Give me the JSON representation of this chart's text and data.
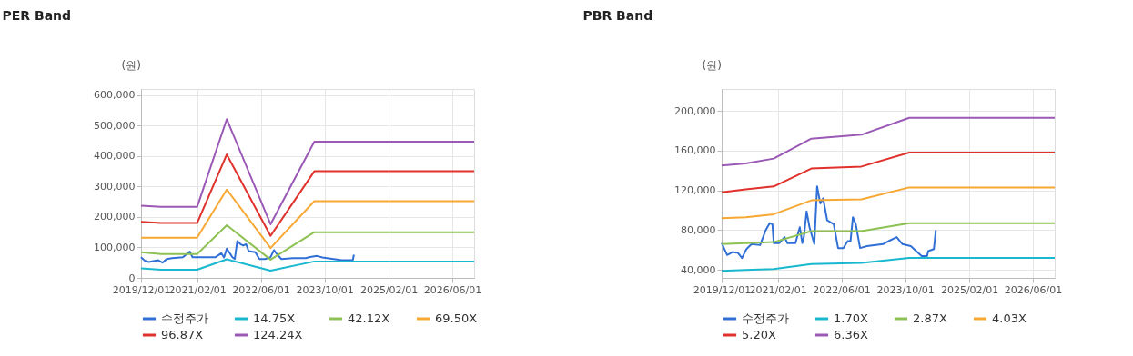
{
  "chart_data": [
    {
      "type": "line",
      "title": "PER Band",
      "ylabel": "(원)",
      "grid": true,
      "legend": "bottom",
      "marker": "none",
      "line_style": "solid",
      "xlim": [
        "2019-12-01",
        "2026-11-15"
      ],
      "xticks": [
        {
          "value": "2019-12-01",
          "label": "2019/12/01"
        },
        {
          "value": "2021-02-01",
          "label": "2021/02/01"
        },
        {
          "value": "2022-06-01",
          "label": "2022/06/01"
        },
        {
          "value": "2023-10-01",
          "label": "2023/10/01"
        },
        {
          "value": "2025-02-01",
          "label": "2025/02/01"
        },
        {
          "value": "2026-06-01",
          "label": "2026/06/01"
        }
      ],
      "ylim": [
        0,
        620000
      ],
      "yticks": [
        0,
        {
          "value": 100000,
          "label": "100,000"
        },
        {
          "value": 200000,
          "label": "200,000"
        },
        {
          "value": 300000,
          "label": "300,000"
        },
        {
          "value": 400000,
          "label": "400,000"
        },
        {
          "value": 500000,
          "label": "500,000"
        },
        {
          "value": 600000,
          "label": "600,000"
        }
      ],
      "series": [
        {
          "name": "수정주가",
          "color": "#2f6fd6",
          "x": [
            "2019-12-01",
            "2019-12-28",
            "2020-01-28",
            "2020-04-10",
            "2020-05-13",
            "2020-06-13",
            "2020-07-25",
            "2020-10-15",
            "2020-12-07",
            "2020-12-28",
            "2021-06-22",
            "2021-08-04",
            "2021-08-25",
            "2021-09-15",
            "2021-10-28",
            "2021-11-15",
            "2021-12-04",
            "2021-12-28",
            "2022-01-19",
            "2022-02-09",
            "2022-03-01",
            "2022-04-21",
            "2022-05-22",
            "2022-07-04",
            "2022-08-15",
            "2022-09-10",
            "2022-10-06",
            "2022-11-06",
            "2023-02-01",
            "2023-05-12",
            "2023-06-03",
            "2023-08-03",
            "2023-09-15",
            "2023-12-09",
            "2024-02-09",
            "2024-05-03",
            "2024-05-12"
          ],
          "values": [
            68000,
            57000,
            52000,
            58000,
            50000,
            62000,
            65000,
            68000,
            86000,
            68000,
            68000,
            81000,
            67000,
            96000,
            68000,
            62000,
            121000,
            111000,
            106000,
            111000,
            88000,
            84000,
            62000,
            62000,
            68000,
            91000,
            76000,
            62000,
            65000,
            65000,
            68000,
            72000,
            67000,
            62000,
            58000,
            58000,
            76000
          ]
        },
        {
          "name": "14.75X",
          "color": "#19b8cf",
          "x": [
            "2019-12-01",
            "2020-05-01",
            "2021-02-01",
            "2021-09-15",
            "2022-08-15",
            "2023-07-15",
            "2026-11-15"
          ],
          "values": [
            31000,
            27000,
            27000,
            61000,
            24000,
            54000,
            54000
          ]
        },
        {
          "name": "42.12X",
          "color": "#8dc153",
          "x": [
            "2019-12-01",
            "2020-05-01",
            "2021-02-01",
            "2021-09-15",
            "2022-08-15",
            "2023-07-15",
            "2026-11-15"
          ],
          "values": [
            84000,
            78000,
            78000,
            173000,
            60000,
            150000,
            150000
          ]
        },
        {
          "name": "69.50X",
          "color": "#f7a833",
          "x": [
            "2019-12-01",
            "2020-05-01",
            "2021-02-01",
            "2021-09-15",
            "2022-08-15",
            "2023-07-15",
            "2026-11-15"
          ],
          "values": [
            132000,
            132000,
            132000,
            290000,
            98000,
            252000,
            252000
          ]
        },
        {
          "name": "96.87X",
          "color": "#e0312c",
          "x": [
            "2019-12-01",
            "2020-05-01",
            "2021-02-01",
            "2021-09-15",
            "2022-08-15",
            "2023-07-15",
            "2026-11-15"
          ],
          "values": [
            184000,
            180000,
            180000,
            405000,
            138000,
            350000,
            350000
          ]
        },
        {
          "name": "124.24X",
          "color": "#9b59b6",
          "x": [
            "2019-12-01",
            "2020-05-01",
            "2021-02-01",
            "2021-09-15",
            "2022-08-15",
            "2023-07-15",
            "2026-11-15"
          ],
          "values": [
            237000,
            233000,
            233000,
            521000,
            176000,
            447000,
            447000
          ]
        }
      ]
    },
    {
      "type": "line",
      "title": "PBR Band",
      "ylabel": "(원)",
      "grid": true,
      "legend": "bottom",
      "marker": "none",
      "line_style": "solid",
      "xlim": [
        "2019-12-01",
        "2026-11-15"
      ],
      "xticks": [
        {
          "value": "2019-12-01",
          "label": "2019/12/01"
        },
        {
          "value": "2021-02-01",
          "label": "2021/02/01"
        },
        {
          "value": "2022-06-01",
          "label": "2022/06/01"
        },
        {
          "value": "2023-10-01",
          "label": "2023/10/01"
        },
        {
          "value": "2025-02-01",
          "label": "2025/02/01"
        },
        {
          "value": "2026-06-01",
          "label": "2026/06/01"
        }
      ],
      "ylim": [
        32000,
        222000
      ],
      "yticks": [
        {
          "value": 40000,
          "label": "40,000"
        },
        {
          "value": 80000,
          "label": "80,000"
        },
        {
          "value": 120000,
          "label": "120,000"
        },
        {
          "value": 160000,
          "label": "160,000"
        },
        {
          "value": 200000,
          "label": "200,000"
        }
      ],
      "series": [
        {
          "name": "수정주가",
          "color": "#2f6fd6",
          "x": [
            "2019-12-01",
            "2020-01-12",
            "2020-02-22",
            "2020-04-04",
            "2020-05-04",
            "2020-06-07",
            "2020-07-16",
            "2020-09-19",
            "2020-11-01",
            "2020-12-01",
            "2020-12-22",
            "2021-01-01",
            "2021-02-13",
            "2021-03-25",
            "2021-04-15",
            "2021-06-16",
            "2021-07-19",
            "2021-08-07",
            "2021-08-19",
            "2021-09-09",
            "2021-10-01",
            "2021-11-07",
            "2021-11-28",
            "2021-12-22",
            "2022-01-13",
            "2022-02-13",
            "2022-04-04",
            "2022-05-07",
            "2022-06-16",
            "2022-07-19",
            "2022-08-10",
            "2022-08-28",
            "2022-09-19",
            "2022-10-22",
            "2022-12-13",
            "2023-04-16",
            "2023-05-28",
            "2023-07-28",
            "2023-09-10",
            "2023-11-13",
            "2024-02-04",
            "2024-03-16",
            "2024-03-25",
            "2024-05-07",
            "2024-05-22"
          ],
          "values": [
            67000,
            55000,
            58000,
            57000,
            52000,
            61000,
            66000,
            65000,
            80000,
            87000,
            86000,
            67000,
            67000,
            73000,
            67000,
            67000,
            83000,
            67000,
            73000,
            99000,
            83000,
            66000,
            124000,
            107000,
            112000,
            90000,
            86000,
            62000,
            62000,
            69000,
            69000,
            93000,
            86000,
            62000,
            64000,
            66000,
            69000,
            73000,
            66000,
            64000,
            54000,
            54000,
            59000,
            61000,
            80000
          ]
        },
        {
          "name": "1.70X",
          "color": "#19b8cf",
          "x": [
            "2019-12-01",
            "2020-06-01",
            "2021-01-01",
            "2021-10-15",
            "2022-11-01",
            "2023-11-01",
            "2026-11-15"
          ],
          "values": [
            39000,
            40000,
            41000,
            46000,
            47000,
            52000,
            52000
          ]
        },
        {
          "name": "2.87X",
          "color": "#8dc153",
          "x": [
            "2019-12-01",
            "2020-06-01",
            "2021-01-01",
            "2021-10-15",
            "2022-11-01",
            "2023-11-01",
            "2026-11-15"
          ],
          "values": [
            66000,
            67000,
            68000,
            79000,
            79000,
            87000,
            87000
          ]
        },
        {
          "name": "4.03X",
          "color": "#f7a833",
          "x": [
            "2019-12-01",
            "2020-06-01",
            "2021-01-01",
            "2021-10-15",
            "2022-11-01",
            "2023-11-01",
            "2026-11-15"
          ],
          "values": [
            92000,
            93000,
            96000,
            110000,
            111000,
            123000,
            123000
          ]
        },
        {
          "name": "5.20X",
          "color": "#e0312c",
          "x": [
            "2019-12-01",
            "2020-06-01",
            "2021-01-01",
            "2021-10-15",
            "2022-11-01",
            "2023-11-01",
            "2026-11-15"
          ],
          "values": [
            118000,
            121000,
            124000,
            142000,
            144000,
            158000,
            158000
          ]
        },
        {
          "name": "6.36X",
          "color": "#9b59b6",
          "x": [
            "2019-12-01",
            "2020-06-01",
            "2021-01-01",
            "2021-10-15",
            "2022-11-01",
            "2023-11-01",
            "2026-11-15"
          ],
          "values": [
            145000,
            147000,
            152000,
            172000,
            176000,
            193000,
            193000
          ]
        }
      ]
    }
  ]
}
